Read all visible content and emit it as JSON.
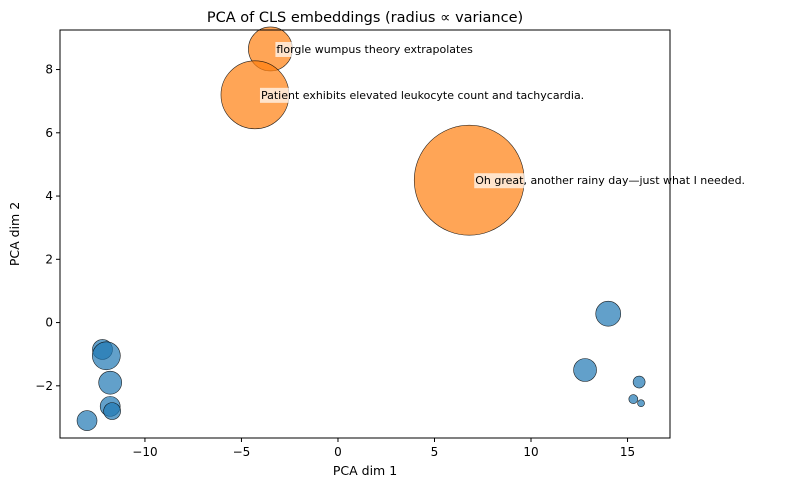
{
  "chart_data": {
    "type": "scatter",
    "title": "PCA of CLS embeddings (radius ∝ variance)",
    "xlabel": "PCA dim 1",
    "ylabel": "PCA dim 2",
    "xlim": [
      -14.4,
      17.2
    ],
    "ylim": [
      -3.65,
      9.25
    ],
    "xticks": [
      -10,
      -5,
      0,
      5,
      10,
      15
    ],
    "yticks": [
      -2,
      0,
      2,
      4,
      6,
      8
    ],
    "xtick_labels": [
      "−10",
      "−5",
      "0",
      "5",
      "10",
      "15"
    ],
    "ytick_labels": [
      "−2",
      "0",
      "2",
      "4",
      "6",
      "8"
    ],
    "grid": false,
    "legend": null,
    "colors": {
      "blue": "#1f77b4",
      "orange": "#ff7f0e",
      "edge": "#000000"
    },
    "series": [
      {
        "color": "blue",
        "points": [
          {
            "x": -12.2,
            "y": -0.85,
            "r": 10
          },
          {
            "x": -12.0,
            "y": -1.05,
            "r": 14
          },
          {
            "x": -11.8,
            "y": -1.9,
            "r": 11.5
          },
          {
            "x": -11.8,
            "y": -2.65,
            "r": 10
          },
          {
            "x": -11.7,
            "y": -2.8,
            "r": 8.5
          },
          {
            "x": -13.0,
            "y": -3.1,
            "r": 10
          },
          {
            "x": 14.0,
            "y": 0.28,
            "r": 12.5
          },
          {
            "x": 12.8,
            "y": -1.5,
            "r": 11.5
          },
          {
            "x": 15.6,
            "y": -1.88,
            "r": 6
          },
          {
            "x": 15.3,
            "y": -2.42,
            "r": 4.5
          },
          {
            "x": 15.7,
            "y": -2.55,
            "r": 3.5
          }
        ]
      },
      {
        "color": "orange",
        "points": [
          {
            "x": -3.5,
            "y": 8.65,
            "r": 22,
            "label": "florgle wumpus theory extrapolates"
          },
          {
            "x": -4.3,
            "y": 7.2,
            "r": 34,
            "label": "Patient exhibits elevated leukocyte count and tachycardia."
          },
          {
            "x": 6.8,
            "y": 4.5,
            "r": 55,
            "label": "Oh great, another rainy day—just what I needed."
          }
        ]
      }
    ]
  }
}
